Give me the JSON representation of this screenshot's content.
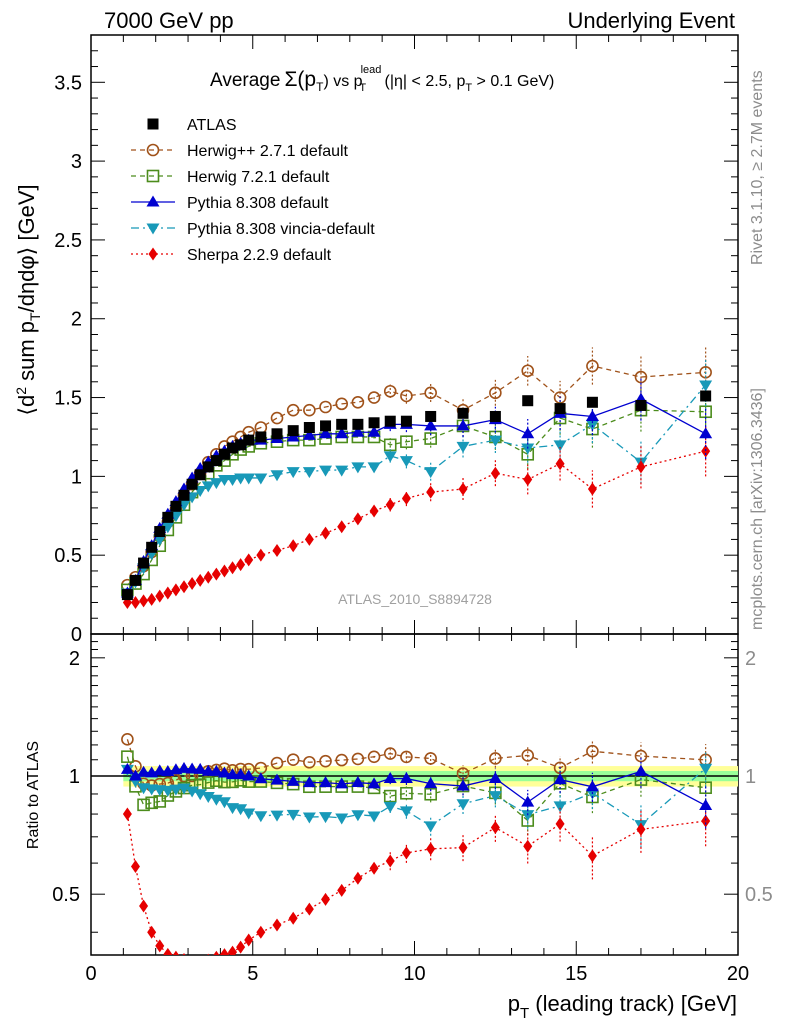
{
  "header": {
    "left": "7000 GeV pp",
    "right": "Underlying Event"
  },
  "plot_title": {
    "main": "Average",
    "sym": "Σ(p",
    "sym_sub": "T",
    "mid": ") vs p",
    "lead_sup": "lead",
    "lead_sub": "T",
    "tail1": " (|η| < 2.5, p",
    "tail_sub": "T",
    "tail2": " > 0.1 GeV)"
  },
  "side": {
    "rivet": "Rivet 3.1.10, ≥ 2.7M events",
    "mcplots": "mcplots.cern.ch [arXiv:1306.3436]"
  },
  "watermark": "ATLAS_2010_S8894728",
  "axes": {
    "ylabel_main": "⟨d² sum p_T/dηdφ⟩ [GeV]",
    "ylabel_ratio": "Ratio to ATLAS",
    "xlabel_a": "p",
    "xlabel_sub": "T",
    "xlabel_b": " (leading track) [GeV]",
    "xticks": [
      "0",
      "5",
      "10",
      "15",
      "20"
    ],
    "yticks_main": [
      "0",
      "0.5",
      "1",
      "1.5",
      "2",
      "2.5",
      "3",
      "3.5"
    ],
    "yticks_ratio_left": [
      "0.5",
      "1",
      "2"
    ],
    "yticks_ratio_right": [
      "0.5",
      "1",
      "2"
    ]
  },
  "colors": {
    "atlas": "#000000",
    "herwigpp": "#a0521a",
    "herwig7": "#4c8c1c",
    "pythia": "#0000d0",
    "vincia": "#1899b8",
    "sherpa": "#e60000",
    "band_inner": "#99ff99",
    "band_outer": "#ffff99"
  },
  "chart_data": {
    "type": "scatter",
    "xlim": [
      0,
      20
    ],
    "ylim_main": [
      0,
      3.8
    ],
    "ylim_ratio": [
      0.35,
      2.3
    ],
    "ratio_log_scale": true,
    "x": [
      1.125,
      1.375,
      1.625,
      1.875,
      2.125,
      2.375,
      2.625,
      2.875,
      3.125,
      3.375,
      3.625,
      3.875,
      4.125,
      4.375,
      4.625,
      4.875,
      5.25,
      5.75,
      6.25,
      6.75,
      7.25,
      7.75,
      8.25,
      8.75,
      9.25,
      9.75,
      10.5,
      11.5,
      12.5,
      13.5,
      14.5,
      15.5,
      17.0,
      19.0
    ],
    "band_inner_halfwidth": 0.03,
    "band_outer_halfwidth": 0.06,
    "band_x_step": 8.0,
    "series": [
      {
        "key": "atlas",
        "name": "ATLAS",
        "marker": "square-filled",
        "line": "none",
        "values": [
          0.25,
          0.34,
          0.45,
          0.55,
          0.65,
          0.74,
          0.81,
          0.88,
          0.95,
          1.01,
          1.06,
          1.1,
          1.14,
          1.18,
          1.2,
          1.23,
          1.25,
          1.27,
          1.29,
          1.31,
          1.32,
          1.33,
          1.33,
          1.34,
          1.35,
          1.35,
          1.38,
          1.4,
          1.38,
          1.48,
          1.43,
          1.47,
          1.45,
          1.51
        ]
      },
      {
        "key": "herwigpp",
        "name": "Herwig++ 2.7.1 default",
        "marker": "circle-open",
        "line": "dashed",
        "values": [
          0.31,
          0.36,
          0.43,
          0.52,
          0.62,
          0.71,
          0.79,
          0.88,
          0.95,
          1.02,
          1.09,
          1.14,
          1.19,
          1.22,
          1.25,
          1.28,
          1.31,
          1.37,
          1.42,
          1.42,
          1.44,
          1.46,
          1.47,
          1.5,
          1.54,
          1.51,
          1.53,
          1.42,
          1.53,
          1.67,
          1.5,
          1.7,
          1.63,
          1.66
        ]
      },
      {
        "key": "herwig7",
        "name": "Herwig 7.2.1 default",
        "marker": "square-open",
        "line": "dashed",
        "values": [
          0.28,
          0.32,
          0.38,
          0.47,
          0.56,
          0.66,
          0.74,
          0.82,
          0.9,
          0.96,
          1.02,
          1.07,
          1.1,
          1.14,
          1.17,
          1.19,
          1.21,
          1.22,
          1.23,
          1.23,
          1.24,
          1.25,
          1.25,
          1.25,
          1.2,
          1.22,
          1.24,
          1.32,
          1.25,
          1.14,
          1.37,
          1.3,
          1.42,
          1.41
        ]
      },
      {
        "key": "pythia",
        "name": "Pythia 8.308 default",
        "marker": "triangle-up-filled",
        "line": "solid",
        "values": [
          0.26,
          0.34,
          0.46,
          0.56,
          0.67,
          0.76,
          0.84,
          0.92,
          0.99,
          1.05,
          1.09,
          1.13,
          1.16,
          1.19,
          1.21,
          1.23,
          1.23,
          1.24,
          1.25,
          1.26,
          1.27,
          1.27,
          1.28,
          1.28,
          1.33,
          1.33,
          1.32,
          1.32,
          1.36,
          1.27,
          1.4,
          1.38,
          1.49,
          1.27
        ]
      },
      {
        "key": "vincia",
        "name": "Pythia 8.308 vincia-default",
        "marker": "triangle-down-filled",
        "line": "dashdot",
        "values": [
          0.26,
          0.33,
          0.42,
          0.51,
          0.6,
          0.68,
          0.75,
          0.82,
          0.87,
          0.91,
          0.94,
          0.96,
          0.98,
          0.98,
          0.99,
          0.99,
          0.99,
          1.01,
          1.03,
          1.03,
          1.04,
          1.04,
          1.06,
          1.06,
          1.13,
          1.1,
          1.03,
          1.19,
          1.23,
          1.18,
          1.2,
          1.33,
          1.09,
          1.58
        ]
      },
      {
        "key": "sherpa",
        "name": "Sherpa 2.2.9 default",
        "marker": "diamond-filled",
        "line": "dotted",
        "values": [
          0.2,
          0.2,
          0.21,
          0.22,
          0.24,
          0.26,
          0.28,
          0.3,
          0.32,
          0.34,
          0.36,
          0.38,
          0.4,
          0.42,
          0.44,
          0.47,
          0.5,
          0.53,
          0.56,
          0.6,
          0.64,
          0.68,
          0.73,
          0.78,
          0.82,
          0.86,
          0.9,
          0.92,
          1.02,
          0.98,
          1.08,
          0.92,
          1.06,
          1.16
        ]
      }
    ]
  }
}
